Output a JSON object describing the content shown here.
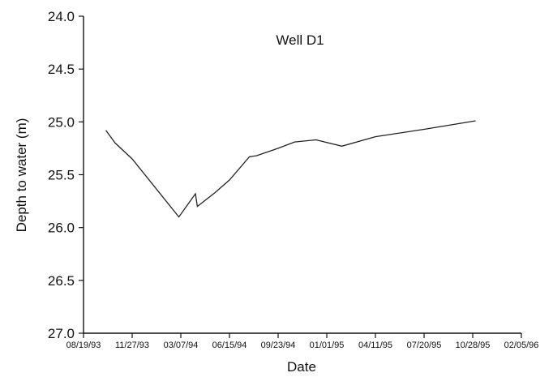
{
  "chart_data": {
    "type": "line",
    "title": "",
    "annotation": "Well D1",
    "xlabel": "Date",
    "ylabel": "Depth to water (m)",
    "ylim": [
      24.0,
      27.0
    ],
    "y_inverted": true,
    "yticks": [
      "24.0",
      "24.5",
      "25.0",
      "25.5",
      "26.0",
      "26.5",
      "27.0"
    ],
    "xlim": [
      "08/19/93",
      "02/05/96"
    ],
    "xticks": [
      "08/19/93",
      "11/27/93",
      "03/07/94",
      "06/15/94",
      "09/23/94",
      "01/01/95",
      "04/11/95",
      "07/20/95",
      "10/28/95",
      "02/05/96"
    ],
    "grid": false,
    "legend": "none",
    "series": [
      {
        "x": [
          "10/04/93",
          "10/23/93",
          "11/27/93",
          "03/03/94",
          "04/06/94",
          "04/10/94",
          "05/16/94",
          "06/15/94",
          "07/26/94",
          "08/10/94",
          "09/23/94",
          "10/27/94",
          "12/10/94",
          "02/01/95",
          "04/11/95",
          "07/20/95",
          "11/03/95"
        ],
        "y": [
          25.08,
          25.2,
          25.35,
          25.9,
          25.68,
          25.8,
          25.67,
          25.55,
          25.33,
          25.32,
          25.25,
          25.19,
          25.17,
          25.23,
          25.14,
          25.07,
          24.99
        ]
      }
    ]
  }
}
